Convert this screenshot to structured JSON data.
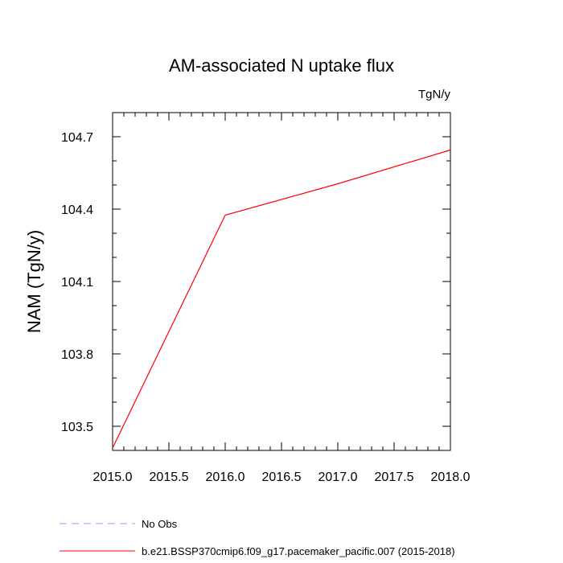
{
  "chart_data": {
    "type": "line",
    "title": "AM-associated N uptake flux",
    "units_label": "TgN/y",
    "xlabel": "",
    "ylabel": "NAM  (TgN/y)",
    "xlim": [
      2015.0,
      2018.0
    ],
    "ylim": [
      103.4,
      104.8
    ],
    "x_ticks": [
      "2015.0",
      "2015.5",
      "2016.0",
      "2016.5",
      "2017.0",
      "2017.5",
      "2018.0"
    ],
    "y_ticks": [
      "103.5",
      "103.8",
      "104.1",
      "104.4",
      "104.7"
    ],
    "grid": false,
    "legend_position": "bottom",
    "series": [
      {
        "name": "b.e21.BSSP370cmip6.f09_g17.pacemaker_pacific.007 (2015-2018)",
        "color": "#ff0000",
        "style": "solid",
        "x": [
          2015,
          2016,
          2017,
          2018
        ],
        "y": [
          103.41,
          104.375,
          104.505,
          104.645
        ]
      }
    ],
    "legend": [
      {
        "label": "No Obs",
        "color": "#9999ff",
        "style": "dashed"
      },
      {
        "label": "b.e21.BSSP370cmip6.f09_g17.pacemaker_pacific.007 (2015-2018)",
        "color": "#ff0000",
        "style": "solid"
      }
    ]
  }
}
